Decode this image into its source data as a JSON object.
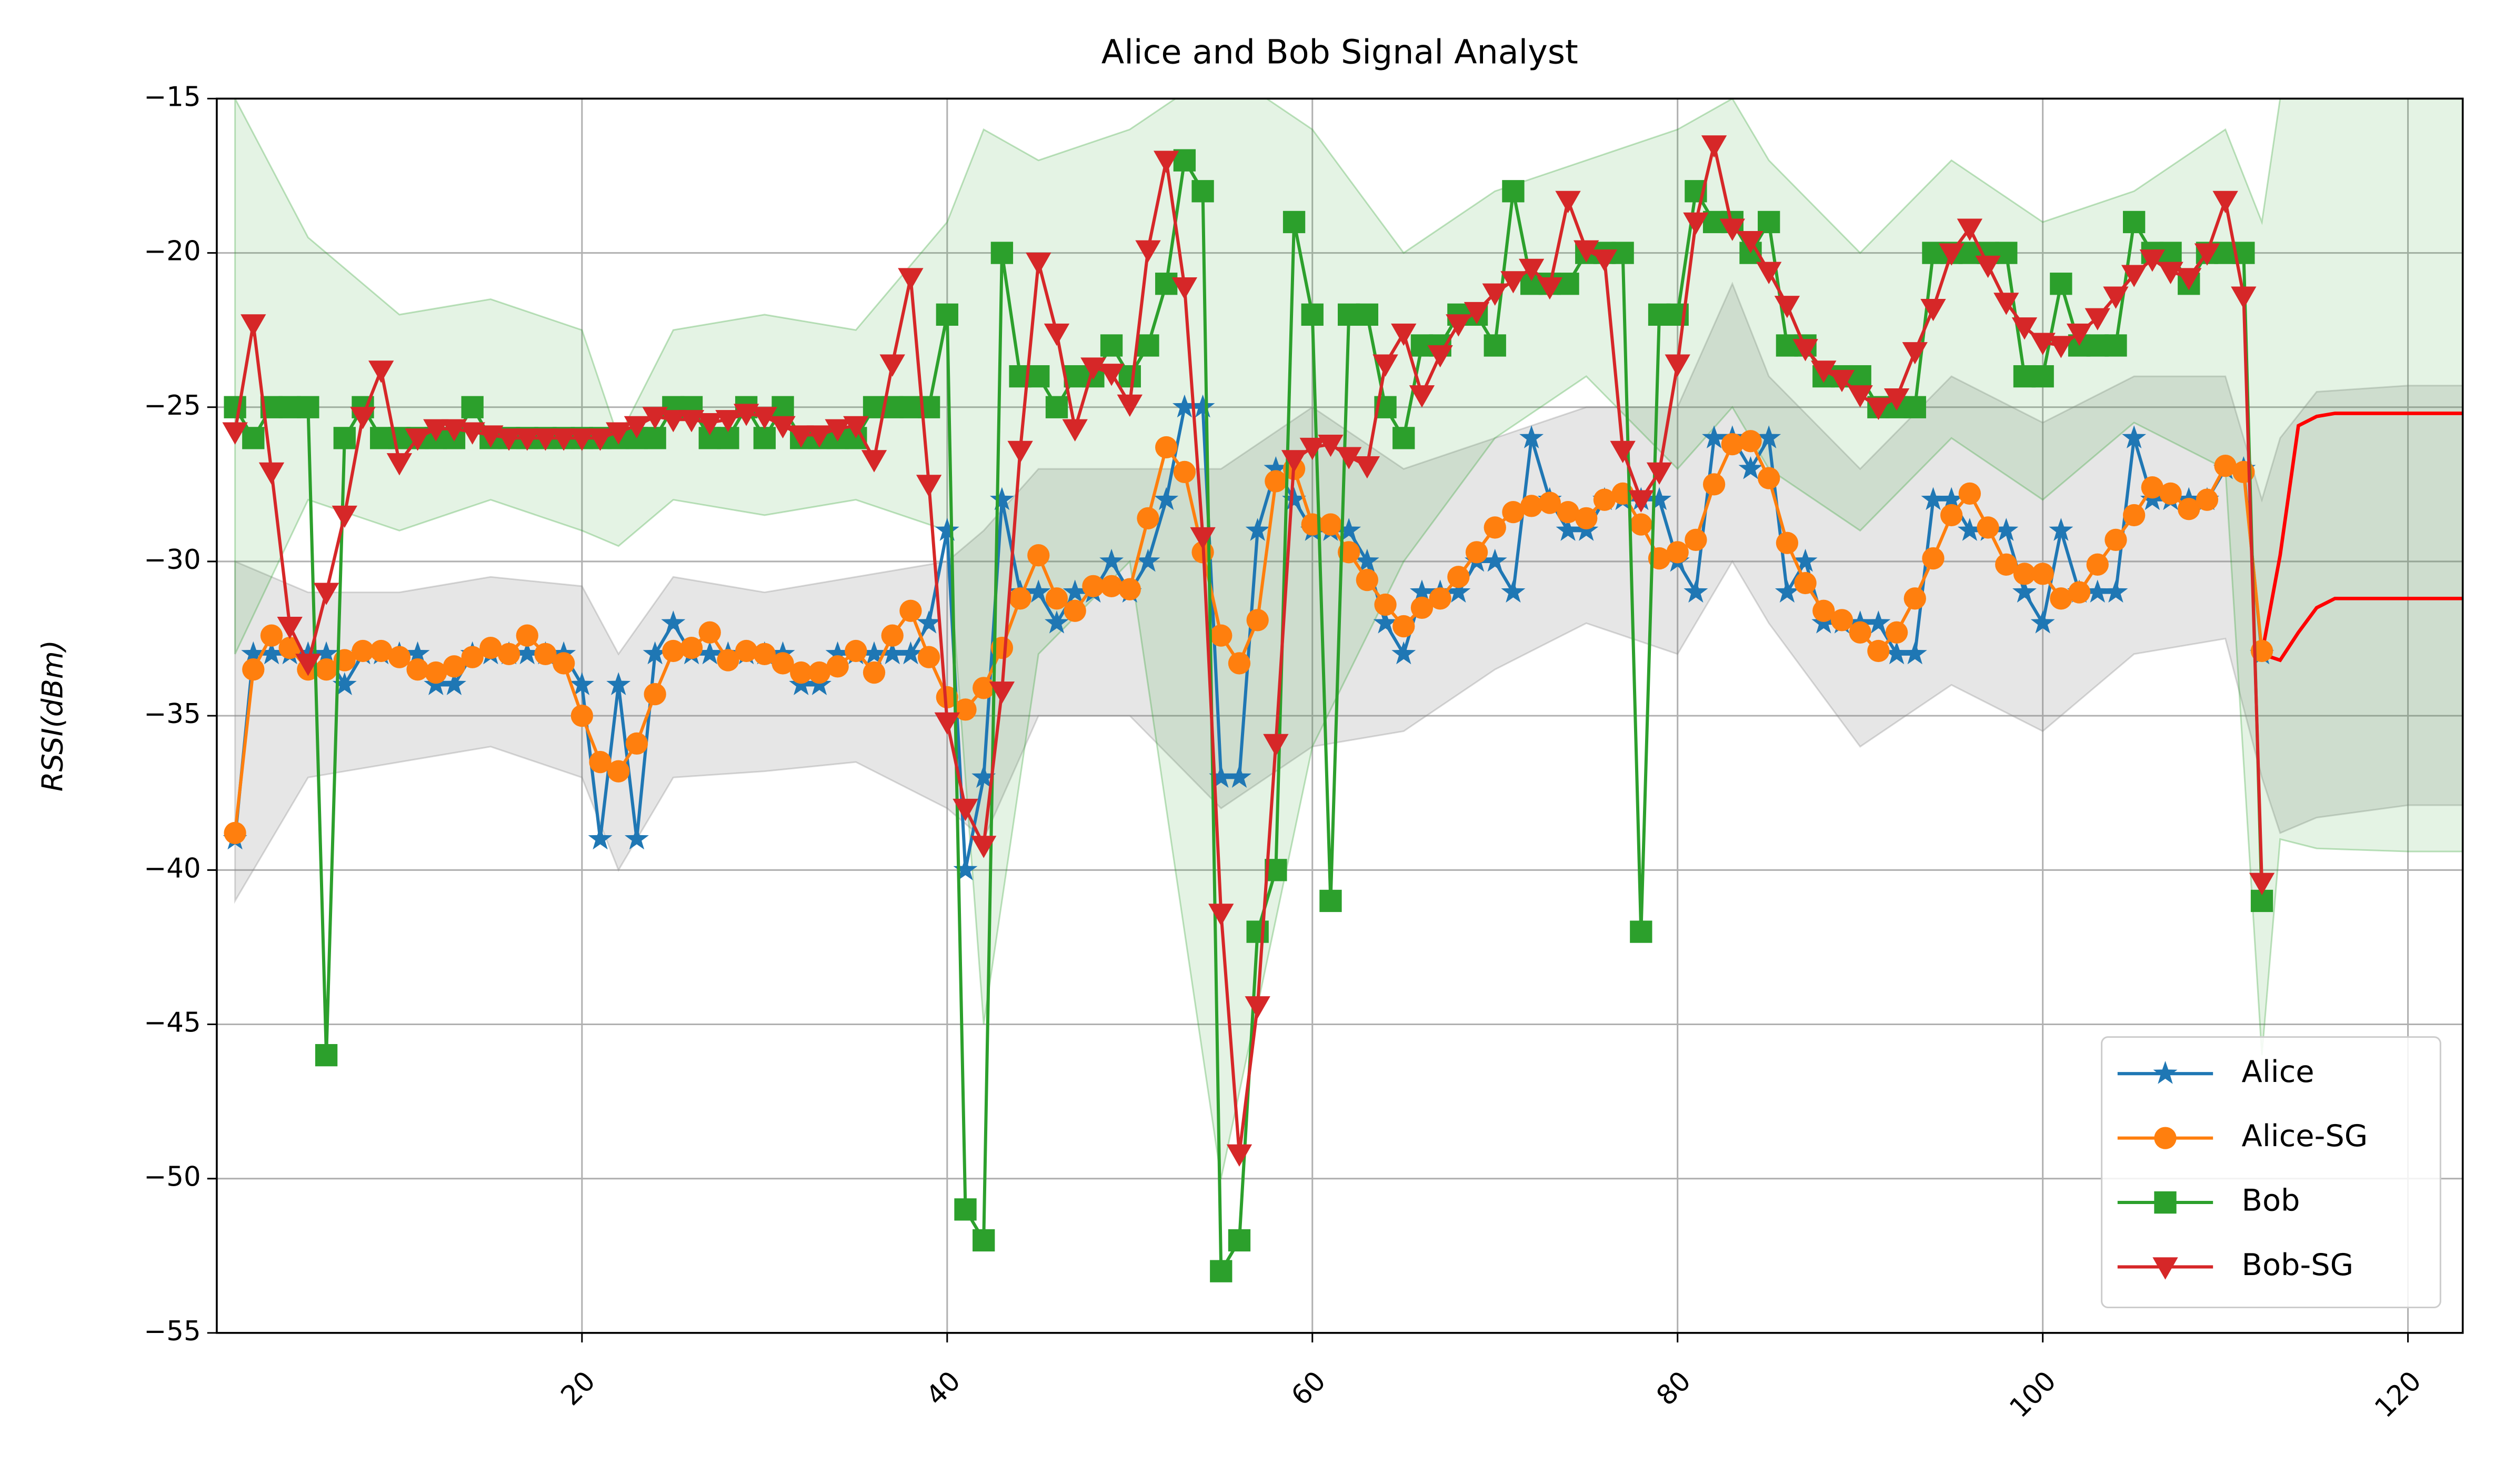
{
  "chart_data": {
    "type": "line",
    "title": "Alice and Bob Signal Analyst",
    "ylabel": "RSSI(dBm)",
    "xlim": [
      0,
      123
    ],
    "ylim": [
      -55,
      -15
    ],
    "xticks": [
      20,
      40,
      60,
      80,
      100,
      120
    ],
    "yticks": [
      {
        "value": -15,
        "label": "−15"
      },
      {
        "value": -20,
        "label": "−20"
      },
      {
        "value": -25,
        "label": "−25"
      },
      {
        "value": -30,
        "label": "−30"
      },
      {
        "value": -35,
        "label": "−35"
      },
      {
        "value": -40,
        "label": "−40"
      },
      {
        "value": -45,
        "label": "−45"
      },
      {
        "value": -50,
        "label": "−50"
      },
      {
        "value": -55,
        "label": "−55"
      }
    ],
    "grid": true,
    "legend": "lower right",
    "x": [
      1,
      2,
      3,
      4,
      5,
      6,
      7,
      8,
      9,
      10,
      11,
      12,
      13,
      14,
      15,
      16,
      17,
      18,
      19,
      20,
      21,
      22,
      23,
      24,
      25,
      26,
      27,
      28,
      29,
      30,
      31,
      32,
      33,
      34,
      35,
      36,
      37,
      38,
      39,
      40,
      41,
      42,
      43,
      44,
      45,
      46,
      47,
      48,
      49,
      50,
      51,
      52,
      53,
      54,
      55,
      56,
      57,
      58,
      59,
      60,
      61,
      62,
      63,
      64,
      65,
      66,
      67,
      68,
      69,
      70,
      71,
      72,
      73,
      74,
      75,
      76,
      77,
      78,
      79,
      80,
      81,
      82,
      83,
      84,
      85,
      86,
      87,
      88,
      89,
      90,
      91,
      92,
      93,
      94,
      95,
      96,
      97,
      98,
      99,
      100,
      101,
      102,
      103,
      104,
      105,
      106,
      107,
      108,
      109,
      110,
      111,
      112
    ],
    "series": [
      {
        "name": "Alice",
        "color": "#1f77b4",
        "marker": "star",
        "values": [
          -39,
          -33,
          -33,
          -33,
          -33,
          -33,
          -34,
          -33,
          -33,
          -33,
          -33,
          -34,
          -34,
          -33,
          -33,
          -33,
          -33,
          -33,
          -33,
          -34,
          -39,
          -34,
          -39,
          -33,
          -32,
          -33,
          -33,
          -33,
          -33,
          -33,
          -33,
          -34,
          -34,
          -33,
          -33,
          -33,
          -33,
          -33,
          -32,
          -29,
          -40,
          -37,
          -28,
          -31,
          -31,
          -32,
          -31,
          -31,
          -30,
          -31,
          -30,
          -28,
          -25,
          -25,
          -37,
          -37,
          -29,
          -27,
          -28,
          -29,
          -29,
          -29,
          -30,
          -32,
          -33,
          -31,
          -31,
          -31,
          -30,
          -30,
          -31,
          -26,
          -28,
          -29,
          -29,
          -28,
          -28,
          -28,
          -28,
          -30,
          -31,
          -26,
          -26,
          -27,
          -26,
          -31,
          -30,
          -32,
          -32,
          -32,
          -32,
          -33,
          -33,
          -28,
          -28,
          -29,
          -29,
          -29,
          -31,
          -32,
          -29,
          -31,
          -31,
          -31,
          -26,
          -28,
          -28,
          -28,
          -28,
          -27,
          -27,
          -33
        ]
      },
      {
        "name": "Alice-SG",
        "color": "#ff7f0e",
        "marker": "circle",
        "values": [
          -38.8,
          -33.5,
          -32.4,
          -32.8,
          -33.5,
          -33.5,
          -33.2,
          -32.9,
          -32.9,
          -33.1,
          -33.5,
          -33.6,
          -33.4,
          -33.1,
          -32.8,
          -33.0,
          -32.4,
          -33.0,
          -33.3,
          -35.0,
          -36.5,
          -36.8,
          -35.9,
          -34.3,
          -32.9,
          -32.8,
          -32.3,
          -33.2,
          -32.9,
          -33.0,
          -33.3,
          -33.6,
          -33.6,
          -33.4,
          -32.9,
          -33.6,
          -32.4,
          -31.6,
          -33.1,
          -34.4,
          -34.8,
          -34.1,
          -32.8,
          -31.2,
          -29.8,
          -31.2,
          -31.6,
          -30.8,
          -30.8,
          -30.9,
          -28.6,
          -26.3,
          -27.1,
          -29.7,
          -32.4,
          -33.3,
          -31.9,
          -27.4,
          -27.0,
          -28.8,
          -28.8,
          -29.7,
          -30.6,
          -31.4,
          -32.1,
          -31.5,
          -31.2,
          -30.5,
          -29.7,
          -28.9,
          -28.4,
          -28.2,
          -28.1,
          -28.4,
          -28.6,
          -28.0,
          -27.8,
          -28.8,
          -29.9,
          -29.7,
          -29.3,
          -27.5,
          -26.2,
          -26.1,
          -27.3,
          -29.4,
          -30.7,
          -31.6,
          -31.9,
          -32.3,
          -32.9,
          -32.3,
          -31.2,
          -29.9,
          -28.5,
          -27.8,
          -28.9,
          -30.1,
          -30.4,
          -30.4,
          -31.2,
          -31.0,
          -30.1,
          -29.3,
          -28.5,
          -27.6,
          -27.8,
          -28.3,
          -28.0,
          -26.9,
          -27.1,
          -32.9
        ]
      },
      {
        "name": "Bob",
        "color": "#2ca02c",
        "marker": "square",
        "values": [
          -25,
          -26,
          -25,
          -25,
          -25,
          -46,
          -26,
          -25,
          -26,
          -26,
          -26,
          -26,
          -26,
          -25,
          -26,
          -26,
          -26,
          -26,
          -26,
          -26,
          -26,
          -26,
          -26,
          -26,
          -25,
          -25,
          -26,
          -26,
          -25,
          -26,
          -25,
          -26,
          -26,
          -26,
          -26,
          -25,
          -25,
          -25,
          -25,
          -22,
          -51,
          -52,
          -20,
          -24,
          -24,
          -25,
          -24,
          -24,
          -23,
          -24,
          -23,
          -21,
          -17,
          -18,
          -53,
          -52,
          -42,
          -40,
          -19,
          -22,
          -41,
          -22,
          -22,
          -25,
          -26,
          -23,
          -23,
          -22,
          -22,
          -23,
          -18,
          -21,
          -21,
          -21,
          -20,
          -20,
          -20,
          -42,
          -22,
          -22,
          -18,
          -19,
          -19,
          -20,
          -19,
          -23,
          -23,
          -24,
          -24,
          -24,
          -25,
          -25,
          -25,
          -20,
          -20,
          -20,
          -20,
          -20,
          -24,
          -24,
          -21,
          -23,
          -23,
          -23,
          -19,
          -20,
          -20,
          -21,
          -20,
          -20,
          -20,
          -41
        ]
      },
      {
        "name": "Bob-SG",
        "color": "#d62728",
        "marker": "triangle-down",
        "values": [
          -25.8,
          -22.3,
          -27.1,
          -32.1,
          -33.3,
          -31.0,
          -28.5,
          -25.3,
          -23.8,
          -26.8,
          -26.0,
          -25.7,
          -25.7,
          -25.8,
          -25.9,
          -26.0,
          -26.0,
          -26.0,
          -26.0,
          -26.0,
          -26.0,
          -25.8,
          -25.6,
          -25.3,
          -25.4,
          -25.4,
          -25.5,
          -25.4,
          -25.2,
          -25.3,
          -25.6,
          -25.9,
          -25.9,
          -25.7,
          -25.6,
          -26.7,
          -23.6,
          -20.8,
          -27.5,
          -35.2,
          -38.0,
          -39.2,
          -34.2,
          -26.4,
          -20.3,
          -22.6,
          -25.7,
          -23.7,
          -23.9,
          -24.9,
          -19.9,
          -17.0,
          -21.1,
          -29.2,
          -41.4,
          -49.2,
          -44.4,
          -35.9,
          -26.7,
          -26.3,
          -26.2,
          -26.6,
          -26.9,
          -23.6,
          -22.6,
          -24.6,
          -23.3,
          -22.3,
          -21.9,
          -21.3,
          -20.9,
          -20.5,
          -21.1,
          -18.3,
          -19.9,
          -20.2,
          -26.4,
          -28.0,
          -27.1,
          -23.6,
          -19.0,
          -16.5,
          -19.2,
          -19.6,
          -20.6,
          -21.7,
          -23.1,
          -23.8,
          -24.1,
          -24.6,
          -25.0,
          -24.7,
          -23.2,
          -21.8,
          -20.0,
          -19.2,
          -20.4,
          -21.6,
          -22.4,
          -22.9,
          -23.0,
          -22.6,
          -22.1,
          -21.4,
          -20.7,
          -20.2,
          -20.6,
          -20.8,
          -20.0,
          -18.3,
          -21.4,
          -40.4
        ]
      }
    ],
    "bands": [
      {
        "color": "#808080",
        "x": [
          1,
          5,
          10,
          15,
          20,
          22,
          25,
          30,
          35,
          40,
          42,
          45,
          50,
          55,
          60,
          65,
          70,
          75,
          80,
          83,
          85,
          90,
          95,
          100,
          105,
          110,
          112,
          113,
          115,
          120,
          123
        ],
        "upper": [
          -30,
          -31,
          -31,
          -30.5,
          -30.8,
          -33,
          -30.5,
          -31,
          -30.5,
          -30,
          -29,
          -27,
          -27,
          -27,
          -25,
          -27,
          -26,
          -25,
          -25,
          -21,
          -24,
          -27,
          -24,
          -25.5,
          -24,
          -24,
          -28,
          -26,
          -24.5,
          -24.3,
          -24.3
        ],
        "lower": [
          -41,
          -37,
          -36.5,
          -36,
          -37,
          -40,
          -37,
          -36.8,
          -36.5,
          -38,
          -39,
          -35,
          -35,
          -38,
          -36,
          -35.5,
          -33.5,
          -32,
          -33,
          -30,
          -32,
          -36,
          -34,
          -35.5,
          -33,
          -32.5,
          -37,
          -38.8,
          -38.3,
          -37.9,
          -37.9
        ]
      },
      {
        "color": "#2ca02c",
        "x": [
          1,
          5,
          10,
          15,
          20,
          22,
          25,
          30,
          35,
          40,
          42,
          45,
          50,
          55,
          60,
          65,
          70,
          75,
          80,
          83,
          85,
          90,
          95,
          100,
          105,
          110,
          112,
          113,
          115,
          120,
          123
        ],
        "upper": [
          -15,
          -19.5,
          -22,
          -21.5,
          -22.5,
          -26,
          -22.5,
          -22,
          -22.5,
          -19,
          -16,
          -17,
          -16,
          -14,
          -16,
          -20,
          -18,
          -17,
          -16,
          -15,
          -17,
          -20,
          -17,
          -19,
          -18,
          -16,
          -19,
          -15,
          -15,
          -15,
          -15
        ],
        "lower": [
          -33,
          -28,
          -29,
          -28,
          -29,
          -29.5,
          -28,
          -28.5,
          -28,
          -29,
          -45,
          -33,
          -30,
          -50,
          -36,
          -30,
          -26,
          -24,
          -27,
          -25,
          -27,
          -29,
          -26,
          -28,
          -25.5,
          -27,
          -46,
          -39,
          -39.3,
          -39.4,
          -39.4
        ]
      }
    ],
    "trends": [
      {
        "color": "#ff0000",
        "x": [
          112,
          113,
          114,
          115,
          116,
          117,
          120,
          123
        ],
        "values": [
          -33,
          -29.8,
          -25.6,
          -25.3,
          -25.2,
          -25.2,
          -25.2,
          -25.2
        ]
      },
      {
        "color": "#ff0000",
        "x": [
          112,
          113,
          114,
          115,
          116,
          117,
          120,
          123
        ],
        "values": [
          -33,
          -33.2,
          -32.3,
          -31.5,
          -31.2,
          -31.2,
          -31.2,
          -31.2
        ]
      }
    ]
  }
}
